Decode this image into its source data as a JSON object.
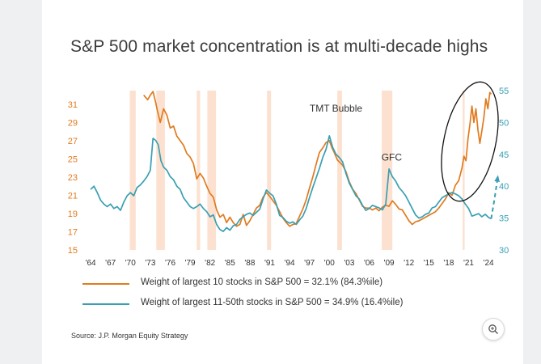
{
  "title": "S&P 500 market concentration is at multi-decade highs",
  "source": "Source: J.P. Morgan Equity Strategy",
  "zoom_icon": "zoom-in-icon",
  "colors": {
    "top10": "#e07b1f",
    "next40": "#3a9fb3",
    "recession": "#fbdcc8",
    "left_axis": "#e07b1f",
    "right_axis": "#3a9fb3",
    "text": "#333333"
  },
  "legend": [
    {
      "label": "Weight of largest 10 stocks in S&P 500 = 32.1% (84.3%ile)",
      "color": "#e07b1f"
    },
    {
      "label": "Weight of largest 11-50th stocks in S&P 500 = 34.9% (16.4%ile)",
      "color": "#3a9fb3"
    }
  ],
  "chart_data": {
    "type": "line",
    "title": "S&P 500 market concentration is at multi-decade highs",
    "xlim": [
      1963.5,
      2024.6
    ],
    "x_ticks": [
      1964,
      1967,
      1970,
      1973,
      1976,
      1979,
      1982,
      1985,
      1988,
      1991,
      1994,
      1997,
      2000,
      2003,
      2006,
      2009,
      2012,
      2015,
      2018,
      2021,
      2024
    ],
    "x_tick_labels": [
      "'64",
      "'67",
      "'70",
      "'73",
      "'76",
      "'79",
      "'82",
      "'85",
      "'88",
      "'91",
      "'94",
      "'97",
      "'00",
      "'03",
      "'06",
      "'09",
      "'12",
      "'15",
      "'18",
      "'21",
      "'24"
    ],
    "left_axis": {
      "ylim": [
        15,
        32.5
      ],
      "ticks": [
        15,
        17,
        19,
        21,
        23,
        25,
        27,
        29,
        31
      ]
    },
    "right_axis": {
      "ylim": [
        30,
        55
      ],
      "ticks": [
        30,
        35,
        40,
        45,
        50,
        55
      ]
    },
    "recession_bands": [
      [
        1969.9,
        1970.8
      ],
      [
        1973.9,
        1975.2
      ],
      [
        1980.0,
        1980.5
      ],
      [
        1981.6,
        1982.9
      ],
      [
        1990.6,
        1991.2
      ],
      [
        2001.2,
        2001.9
      ],
      [
        2007.9,
        2009.5
      ],
      [
        2020.1,
        2020.4
      ]
    ],
    "series": [
      {
        "name": "Weight of largest 10 stocks in S&P 500",
        "axis": "left",
        "x": [
          1972.0,
          1972.6,
          1973.0,
          1973.4,
          1973.8,
          1974.1,
          1974.5,
          1975.0,
          1975.5,
          1976.0,
          1976.5,
          1977.0,
          1977.5,
          1978.0,
          1978.5,
          1979.0,
          1979.5,
          1980.0,
          1980.5,
          1981.0,
          1981.5,
          1982.0,
          1982.5,
          1983.0,
          1983.5,
          1984.0,
          1984.5,
          1985.0,
          1985.5,
          1986.0,
          1986.5,
          1987.0,
          1987.5,
          1988.0,
          1988.5,
          1989.0,
          1989.5,
          1990.0,
          1990.5,
          1991.0,
          1991.5,
          1992.0,
          1992.5,
          1993.0,
          1993.5,
          1994.0,
          1994.5,
          1995.0,
          1995.5,
          1996.0,
          1996.5,
          1997.0,
          1997.5,
          1998.0,
          1998.5,
          1999.0,
          1999.5,
          2000.0,
          2000.4,
          2000.8,
          2001.2,
          2001.6,
          2002.0,
          2002.5,
          2003.0,
          2003.5,
          2004.0,
          2004.5,
          2005.0,
          2005.5,
          2006.0,
          2006.5,
          2007.0,
          2007.5,
          2008.0,
          2008.5,
          2009.0,
          2009.5,
          2010.0,
          2010.5,
          2011.0,
          2011.5,
          2012.0,
          2012.5,
          2013.0,
          2013.5,
          2014.0,
          2014.5,
          2015.0,
          2015.5,
          2016.0,
          2016.5,
          2017.0,
          2017.5,
          2018.0,
          2018.5,
          2019.0,
          2019.5,
          2020.0,
          2020.3,
          2020.6,
          2020.9,
          2021.2,
          2021.5,
          2021.8,
          2022.1,
          2022.4,
          2022.7,
          2023.0,
          2023.3,
          2023.6,
          2023.9,
          2024.2,
          2024.4
        ],
        "values": [
          32.0,
          31.5,
          32.0,
          32.4,
          31.2,
          30.2,
          29.0,
          30.5,
          29.8,
          28.4,
          28.6,
          27.5,
          27.0,
          26.5,
          25.6,
          25.2,
          24.5,
          22.8,
          23.4,
          22.9,
          22.0,
          21.2,
          20.8,
          19.4,
          18.6,
          18.9,
          18.0,
          18.6,
          18.0,
          17.6,
          17.8,
          18.9,
          17.7,
          18.2,
          18.9,
          19.6,
          19.9,
          20.8,
          21.3,
          20.9,
          20.4,
          19.9,
          19.2,
          18.5,
          18.0,
          17.6,
          17.8,
          17.9,
          18.7,
          19.5,
          20.5,
          21.8,
          23.0,
          24.4,
          25.7,
          26.2,
          26.8,
          27.0,
          26.2,
          25.6,
          24.9,
          24.6,
          24.3,
          23.6,
          22.5,
          21.7,
          21.2,
          20.5,
          19.8,
          19.6,
          19.6,
          19.4,
          19.6,
          19.3,
          19.7,
          19.9,
          19.8,
          20.4,
          20.0,
          19.5,
          19.4,
          18.8,
          18.2,
          17.8,
          18.1,
          18.2,
          18.4,
          18.6,
          18.8,
          19.0,
          19.2,
          19.6,
          20.1,
          20.6,
          21.3,
          21.0,
          22.1,
          22.6,
          24.0,
          25.3,
          24.8,
          27.2,
          28.8,
          30.8,
          29.0,
          30.5,
          28.2,
          26.7,
          28.1,
          29.5,
          31.6,
          30.5,
          32.3,
          32.1
        ]
      },
      {
        "name": "Weight of largest 11-50th stocks in S&P 500",
        "axis": "right",
        "x": [
          1964.0,
          1964.5,
          1965.0,
          1965.5,
          1966.0,
          1966.5,
          1967.0,
          1967.5,
          1968.0,
          1968.5,
          1969.0,
          1969.5,
          1970.0,
          1970.5,
          1971.0,
          1971.5,
          1972.0,
          1972.5,
          1973.0,
          1973.4,
          1973.8,
          1974.2,
          1974.6,
          1975.0,
          1975.5,
          1976.0,
          1976.5,
          1977.0,
          1977.5,
          1978.0,
          1978.5,
          1979.0,
          1979.5,
          1980.0,
          1980.5,
          1981.0,
          1981.5,
          1982.0,
          1982.5,
          1983.0,
          1983.5,
          1984.0,
          1984.5,
          1985.0,
          1985.5,
          1986.0,
          1986.5,
          1987.0,
          1987.5,
          1988.0,
          1988.5,
          1989.0,
          1989.5,
          1990.0,
          1990.5,
          1991.0,
          1991.5,
          1992.0,
          1992.5,
          1993.0,
          1993.5,
          1994.0,
          1994.5,
          1995.0,
          1995.5,
          1996.0,
          1996.5,
          1997.0,
          1997.5,
          1998.0,
          1998.5,
          1999.0,
          1999.5,
          2000.0,
          2000.5,
          2001.0,
          2001.5,
          2002.0,
          2002.5,
          2003.0,
          2003.5,
          2004.0,
          2004.5,
          2005.0,
          2005.5,
          2006.0,
          2006.5,
          2007.0,
          2007.5,
          2008.0,
          2008.5,
          2009.0,
          2009.5,
          2010.0,
          2010.5,
          2011.0,
          2011.5,
          2012.0,
          2012.5,
          2013.0,
          2013.5,
          2014.0,
          2014.5,
          2015.0,
          2015.5,
          2016.0,
          2016.5,
          2017.0,
          2017.5,
          2018.0,
          2018.5,
          2019.0,
          2019.5,
          2020.0,
          2020.5,
          2021.0,
          2021.5,
          2022.0,
          2022.5,
          2023.0,
          2023.5,
          2024.0,
          2024.4
        ],
        "values": [
          39.5,
          40.0,
          39.0,
          37.8,
          37.2,
          36.8,
          37.2,
          36.5,
          36.8,
          36.2,
          37.5,
          38.5,
          39.0,
          38.5,
          39.8,
          40.2,
          40.8,
          41.5,
          42.5,
          47.5,
          47.2,
          46.5,
          44.0,
          43.0,
          42.5,
          41.5,
          41.0,
          40.0,
          39.5,
          38.2,
          37.5,
          36.8,
          36.5,
          36.8,
          37.2,
          36.5,
          36.0,
          35.2,
          35.5,
          34.0,
          33.2,
          32.9,
          33.5,
          33.1,
          33.8,
          34.0,
          34.8,
          35.2,
          35.6,
          35.8,
          35.4,
          35.9,
          36.4,
          38.0,
          39.4,
          38.9,
          38.5,
          37.2,
          35.4,
          35.1,
          34.5,
          34.2,
          34.4,
          34.0,
          34.7,
          35.3,
          36.5,
          38.2,
          39.8,
          41.3,
          42.8,
          44.5,
          45.8,
          47.9,
          46.1,
          45.0,
          44.5,
          43.8,
          42.0,
          40.5,
          39.5,
          38.5,
          38.0,
          37.0,
          36.2,
          36.5,
          37.0,
          36.8,
          36.6,
          36.3,
          37.2,
          42.7,
          41.5,
          40.8,
          39.8,
          39.2,
          38.5,
          37.5,
          36.5,
          35.5,
          35.0,
          35.2,
          35.6,
          35.8,
          36.6,
          36.8,
          37.5,
          38.2,
          38.5,
          38.8,
          39.0,
          38.8,
          38.5,
          38.0,
          37.2,
          36.5,
          35.3,
          35.5,
          35.7,
          35.2,
          35.6,
          35.1,
          34.9
        ]
      },
      {
        "name": "Weight of largest 11-50th stocks in S&P 500 (projection)",
        "axis": "right",
        "dashed": true,
        "x": [
          2024.4,
          2024.9,
          2025.4
        ],
        "values": [
          34.9,
          38.0,
          41.5
        ]
      }
    ],
    "annotations": [
      {
        "text": "TMT Bubble",
        "x": 2001.0,
        "y": 30.2
      },
      {
        "text": "GFC",
        "x": 2009.4,
        "y": 24.8
      }
    ]
  }
}
